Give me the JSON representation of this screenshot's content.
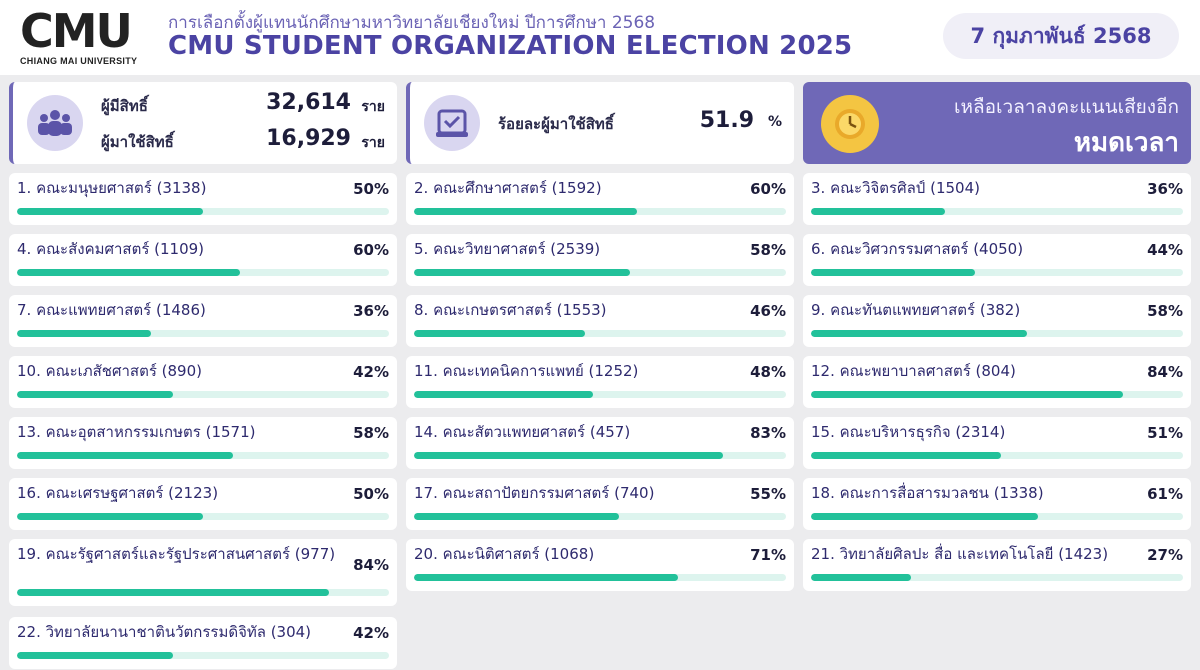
{
  "header": {
    "logo_text": "CMU",
    "logo_sub": "CHIANG MAI UNIVERSITY",
    "subtitle": "การเลือกตั้งผู้แทนนักศึกษามหาวิทยาลัยเชียงใหม่ ปีการศึกษา 2568",
    "title": "CMU STUDENT ORGANIZATION ELECTION 2025",
    "date": "7 กุมภาพันธ์ 2568"
  },
  "stats": {
    "eligible_label": "ผู้มีสิทธิ์",
    "eligible_value": "32,614",
    "voted_label": "ผู้มาใช้สิทธิ์",
    "voted_value": "16,929",
    "unit": "ราย",
    "turnout_label": "ร้อยละผู้มาใช้สิทธิ์",
    "turnout_value": "51.9",
    "turnout_unit": "%"
  },
  "countdown": {
    "label": "เหลือเวลาลงคะแนนเสียงอีก",
    "value": "หมดเวลา"
  },
  "icons": {
    "people": "people-group-icon",
    "ballot": "ballot-box-icon",
    "clock": "clock-icon"
  },
  "colors": {
    "accent": "#6f68b7",
    "bar_fill": "#22c19a",
    "bar_track": "#ddf4ee",
    "clock": "#f4c542"
  },
  "faculties": [
    {
      "label": "1. คณะมนุษยศาสตร์ (3138)",
      "pct_label": "50%",
      "pct": 50
    },
    {
      "label": "2. คณะศึกษาศาสตร์ (1592)",
      "pct_label": "60%",
      "pct": 60
    },
    {
      "label": "3. คณะวิจิตรศิลป์ (1504)",
      "pct_label": "36%",
      "pct": 36
    },
    {
      "label": "4. คณะสังคมศาสตร์ (1109)",
      "pct_label": "60%",
      "pct": 60
    },
    {
      "label": "5. คณะวิทยาศาสตร์ (2539)",
      "pct_label": "58%",
      "pct": 58
    },
    {
      "label": "6. คณะวิศวกรรมศาสตร์ (4050)",
      "pct_label": "44%",
      "pct": 44
    },
    {
      "label": "7. คณะแพทยศาสตร์ (1486)",
      "pct_label": "36%",
      "pct": 36
    },
    {
      "label": "8. คณะเกษตรศาสตร์ (1553)",
      "pct_label": "46%",
      "pct": 46
    },
    {
      "label": "9. คณะทันตแพทยศาสตร์ (382)",
      "pct_label": "58%",
      "pct": 58
    },
    {
      "label": "10. คณะเภสัชศาสตร์ (890)",
      "pct_label": "42%",
      "pct": 42
    },
    {
      "label": "11. คณะเทคนิคการแพทย์ (1252)",
      "pct_label": "48%",
      "pct": 48
    },
    {
      "label": "12. คณะพยาบาลศาสตร์ (804)",
      "pct_label": "84%",
      "pct": 84
    },
    {
      "label": "13. คณะอุตสาหกรรมเกษตร (1571)",
      "pct_label": "58%",
      "pct": 58
    },
    {
      "label": "14. คณะสัตวแพทยศาสตร์ (457)",
      "pct_label": "83%",
      "pct": 83
    },
    {
      "label": "15. คณะบริหารธุรกิจ (2314)",
      "pct_label": "51%",
      "pct": 51
    },
    {
      "label": "16. คณะเศรษฐศาสตร์ (2123)",
      "pct_label": "50%",
      "pct": 50
    },
    {
      "label": "17. คณะสถาปัตยกรรมศาสตร์ (740)",
      "pct_label": "55%",
      "pct": 55
    },
    {
      "label": "18. คณะการสื่อสารมวลชน (1338)",
      "pct_label": "61%",
      "pct": 61
    },
    {
      "label": "19. คณะรัฐศาสตร์และรัฐประศาสนศาสตร์ (977)",
      "pct_label": "84%",
      "pct": 84
    },
    {
      "label": "20. คณะนิติศาสตร์ (1068)",
      "pct_label": "71%",
      "pct": 71
    },
    {
      "label": "21. วิทยาลัยศิลปะ สื่อ และเทคโนโลยี (1423)",
      "pct_label": "27%",
      "pct": 27
    },
    {
      "label": "22. วิทยาลัยนานาชาตินวัตกรรมดิจิทัล (304)",
      "pct_label": "42%",
      "pct": 42
    }
  ]
}
